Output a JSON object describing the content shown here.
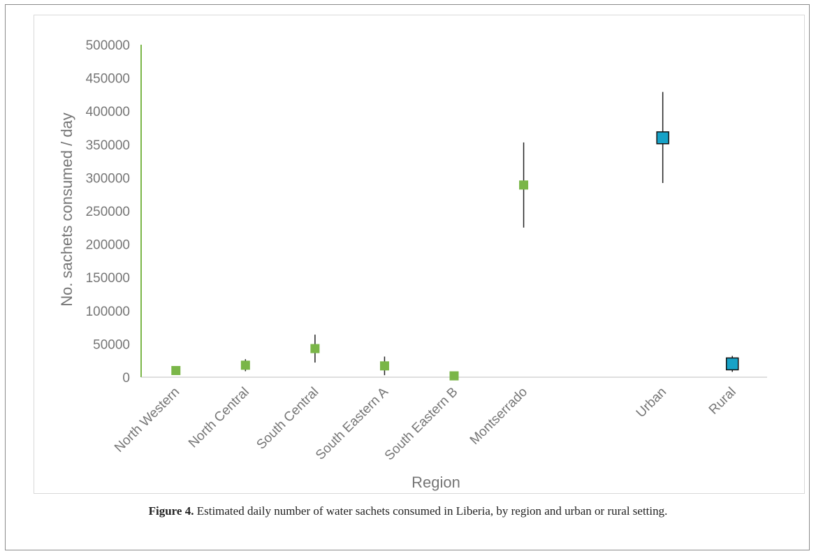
{
  "chart_data": {
    "type": "scatter",
    "title": "",
    "xlabel": "Region",
    "ylabel": "No. sachets consumed / day",
    "ylim": [
      0,
      500000
    ],
    "yticks": [
      0,
      50000,
      100000,
      150000,
      200000,
      250000,
      300000,
      350000,
      400000,
      450000,
      500000
    ],
    "categories": [
      "North Western",
      "North Central",
      "South Central",
      "South Eastern A",
      "South Eastern B",
      "Montserrado",
      "",
      "Urban",
      "Rural"
    ],
    "grid": false,
    "legend": "none",
    "series": [
      {
        "color": "#7ab648",
        "marker": "square",
        "points": [
          {
            "x": "North Western",
            "y": 10000,
            "low": 8000,
            "high": 12000
          },
          {
            "x": "North Central",
            "y": 18000,
            "low": 9000,
            "high": 27000
          },
          {
            "x": "South Central",
            "y": 43000,
            "low": 22000,
            "high": 64000
          },
          {
            "x": "South Eastern A",
            "y": 17000,
            "low": 3000,
            "high": 31000
          },
          {
            "x": "South Eastern B",
            "y": 2000,
            "low": 1000,
            "high": 3000
          },
          {
            "x": "Montserrado",
            "y": 289000,
            "low": 225000,
            "high": 353000
          }
        ]
      },
      {
        "color": "#17a2c7",
        "marker": "square-outlined",
        "points": [
          {
            "x": "Urban",
            "y": 360000,
            "low": 292000,
            "high": 429000
          },
          {
            "x": "Rural",
            "y": 20000,
            "low": 8000,
            "high": 32000
          }
        ]
      }
    ]
  },
  "caption": {
    "label": "Figure 4.",
    "text": " Estimated daily number of water sachets consumed in Liberia, by region and urban or rural setting."
  }
}
